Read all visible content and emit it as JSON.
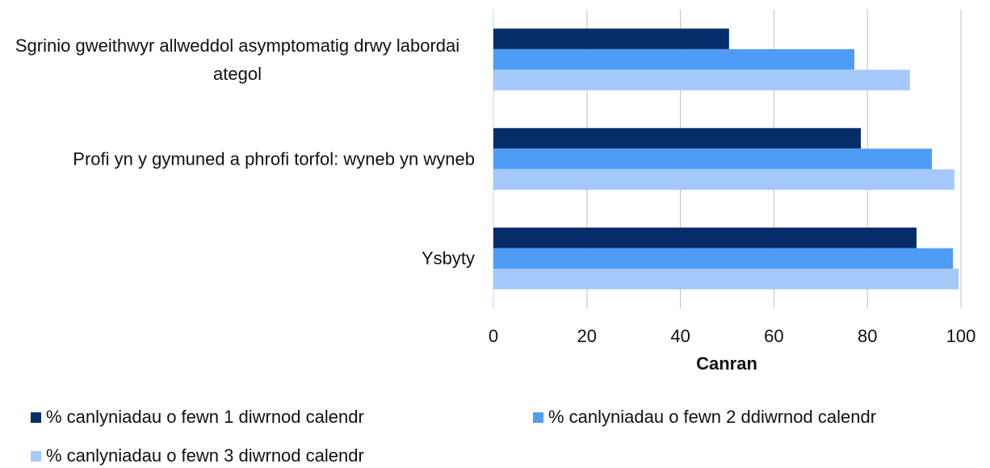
{
  "chart_data": {
    "type": "bar",
    "orientation": "horizontal",
    "categories": [
      "Sgrinio gweithwyr allweddol asymptomatig drwy labordai ategol",
      "Profi yn y gymuned a phrofi torfol: wyneb yn wyneb",
      "Ysbyty"
    ],
    "series": [
      {
        "name": "% canlyniadau o fewn 1 diwrnod calendr",
        "color": "#062d69",
        "values": [
          50.4,
          78.6,
          90.5
        ]
      },
      {
        "name": "% canlyniadau o fewn 2 ddiwrnod calendr",
        "color": "#4f9cf7",
        "values": [
          77.2,
          93.8,
          98.3
        ]
      },
      {
        "name": "% canlyniadau o fewn 3 diwrnod calendr",
        "color": "#a6c9fb",
        "values": [
          89.1,
          98.6,
          99.5
        ]
      }
    ],
    "xlabel": "Canran",
    "xlim": [
      0,
      100
    ],
    "xticks": [
      0,
      20,
      40,
      60,
      80,
      100
    ],
    "grid": true,
    "legend": "bottom"
  }
}
